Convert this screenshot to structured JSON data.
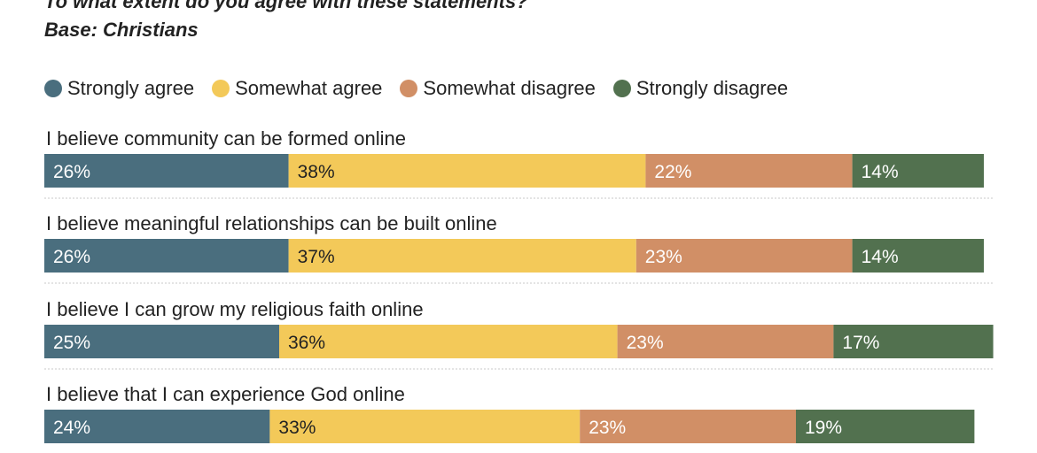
{
  "chart_data": {
    "type": "bar",
    "orientation": "horizontal-stacked",
    "title": "To what extent do you agree with these statements?",
    "subtitle": "Base: Christians",
    "units": "%",
    "legend_position": "top-left",
    "series": [
      {
        "name": "Strongly agree",
        "color": "#4a6e7e",
        "label_color": "#ffffff"
      },
      {
        "name": "Somewhat agree",
        "color": "#f3c959",
        "label_color": "#222222"
      },
      {
        "name": "Somewhat disagree",
        "color": "#d18f66",
        "label_color": "#ffffff"
      },
      {
        "name": "Strongly disagree",
        "color": "#52714f",
        "label_color": "#ffffff"
      }
    ],
    "categories": [
      "I believe community can be formed online",
      "I believe meaningful relationships can be built online",
      "I believe I can grow my religious faith online",
      "I believe that I can experience God online"
    ],
    "values": [
      [
        26,
        38,
        22,
        14
      ],
      [
        26,
        37,
        23,
        14
      ],
      [
        25,
        36,
        23,
        17
      ],
      [
        24,
        33,
        23,
        19
      ]
    ],
    "value_labels": [
      [
        "26%",
        "38%",
        "22%",
        "14%"
      ],
      [
        "26%",
        "37%",
        "23%",
        "14%"
      ],
      [
        "25%",
        "36%",
        "23%",
        "17%"
      ],
      [
        "24%",
        "33%",
        "23%",
        "19%"
      ]
    ]
  }
}
